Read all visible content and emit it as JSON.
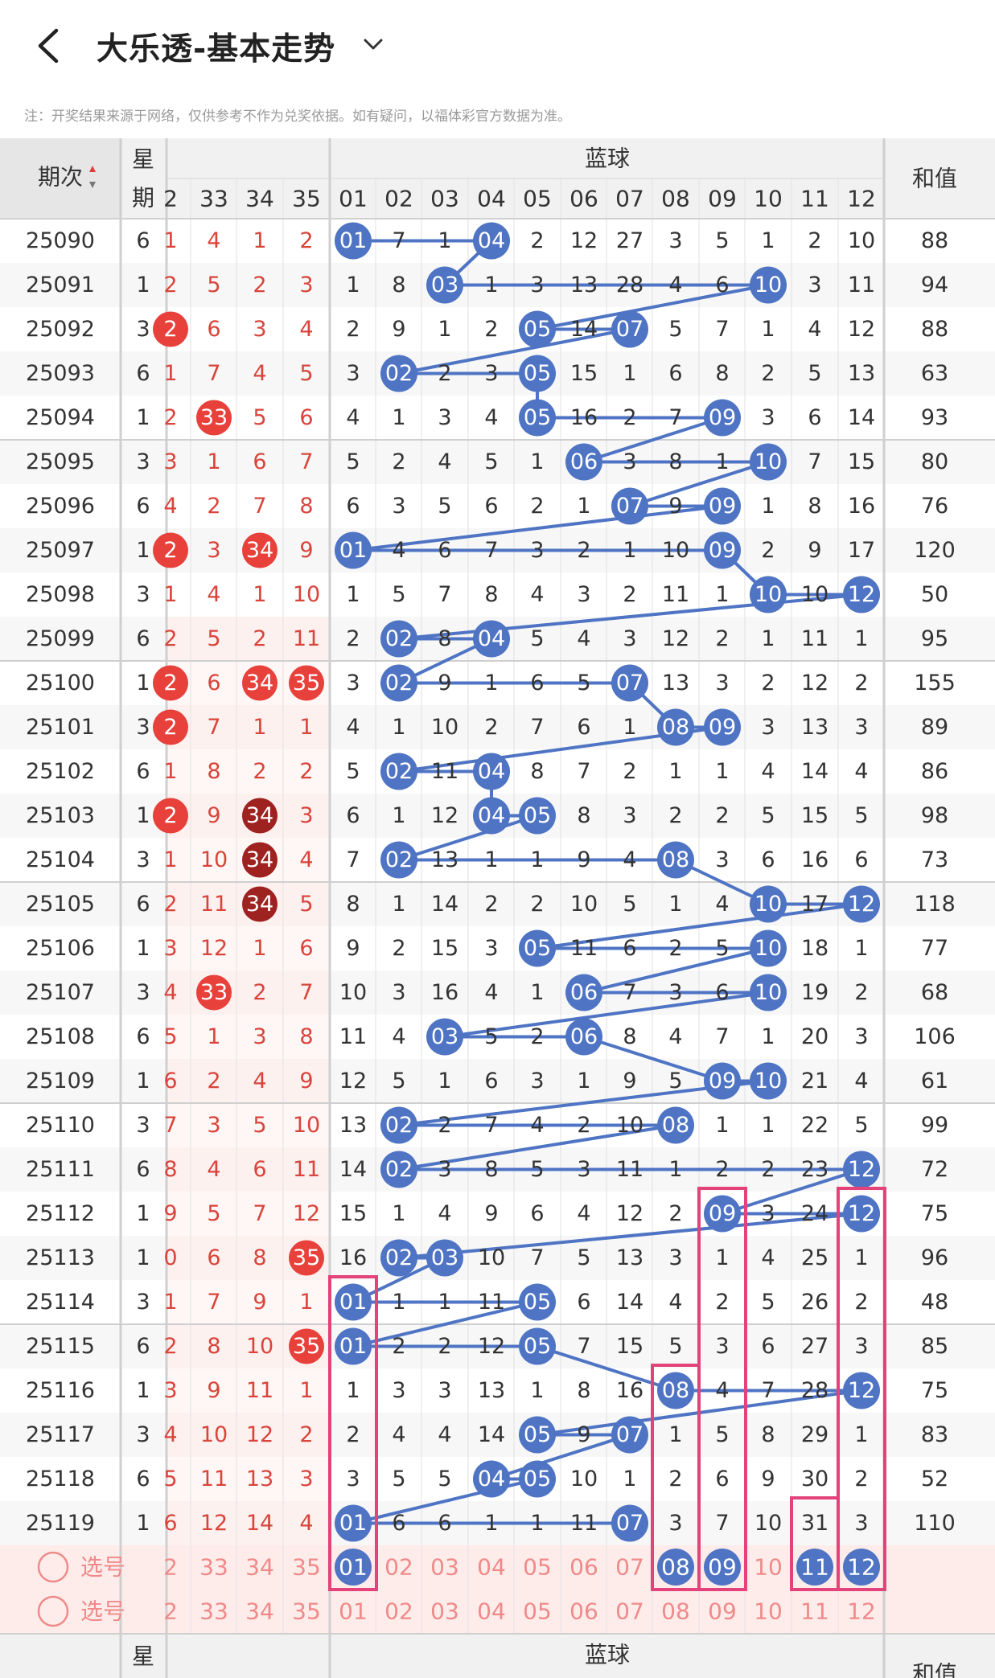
{
  "header": {
    "title": "大乐透-基本走势",
    "note": "注：开奖结果来源于网络，仅供参考不作为兑奖依据。如有疑问，以福体彩官方数据为准。"
  },
  "table": {
    "col_period": "期次",
    "col_weekday_top": "星",
    "col_weekday_bottom": "期",
    "blue_group": "蓝球",
    "col_sum": "和值",
    "front_cols": [
      "2",
      "33",
      "34",
      "35"
    ],
    "blue_cols": [
      "01",
      "02",
      "03",
      "04",
      "05",
      "06",
      "07",
      "08",
      "09",
      "10",
      "11",
      "12"
    ],
    "rows": [
      {
        "period": "25090",
        "wd": "6",
        "front": [
          "1",
          "4",
          "1",
          "2"
        ],
        "front_hit": [],
        "blue": [
          "01",
          "7",
          "1",
          "04",
          "2",
          "12",
          "27",
          "3",
          "5",
          "1",
          "2",
          "10"
        ],
        "hits": [
          1,
          4
        ],
        "sum": "88"
      },
      {
        "period": "25091",
        "wd": "1",
        "front": [
          "2",
          "5",
          "2",
          "3"
        ],
        "front_hit": [],
        "blue": [
          "1",
          "8",
          "03",
          "1",
          "3",
          "13",
          "28",
          "4",
          "6",
          "10",
          "3",
          "11"
        ],
        "hits": [
          3,
          10
        ],
        "sum": "94"
      },
      {
        "period": "25092",
        "wd": "3",
        "front": [
          "2",
          "6",
          "3",
          "4"
        ],
        "front_hit": [
          0
        ],
        "blue": [
          "2",
          "9",
          "1",
          "2",
          "05",
          "14",
          "07",
          "5",
          "7",
          "1",
          "4",
          "12"
        ],
        "hits": [
          5,
          7
        ],
        "sum": "88"
      },
      {
        "period": "25093",
        "wd": "6",
        "front": [
          "1",
          "7",
          "4",
          "5"
        ],
        "front_hit": [],
        "blue": [
          "3",
          "02",
          "2",
          "3",
          "05",
          "15",
          "1",
          "6",
          "8",
          "2",
          "5",
          "13"
        ],
        "hits": [
          2,
          5
        ],
        "sum": "63"
      },
      {
        "period": "25094",
        "wd": "1",
        "front": [
          "2",
          "33",
          "5",
          "6"
        ],
        "front_hit": [
          1
        ],
        "blue": [
          "4",
          "1",
          "3",
          "4",
          "05",
          "16",
          "2",
          "7",
          "09",
          "3",
          "6",
          "14"
        ],
        "hits": [
          5,
          9
        ],
        "sum": "93"
      },
      {
        "period": "25095",
        "wd": "3",
        "front": [
          "3",
          "1",
          "6",
          "7"
        ],
        "front_hit": [],
        "blue": [
          "5",
          "2",
          "4",
          "5",
          "1",
          "06",
          "3",
          "8",
          "1",
          "10",
          "7",
          "15"
        ],
        "hits": [
          6,
          10
        ],
        "sum": "80"
      },
      {
        "period": "25096",
        "wd": "6",
        "front": [
          "4",
          "2",
          "7",
          "8"
        ],
        "front_hit": [],
        "blue": [
          "6",
          "3",
          "5",
          "6",
          "2",
          "1",
          "07",
          "9",
          "09",
          "1",
          "8",
          "16"
        ],
        "hits": [
          7,
          9
        ],
        "sum": "76"
      },
      {
        "period": "25097",
        "wd": "1",
        "front": [
          "2",
          "3",
          "34",
          "9"
        ],
        "front_hit": [
          0,
          2
        ],
        "blue": [
          "01",
          "4",
          "6",
          "7",
          "3",
          "2",
          "1",
          "10",
          "09",
          "2",
          "9",
          "17"
        ],
        "hits": [
          1,
          9
        ],
        "sum": "120"
      },
      {
        "period": "25098",
        "wd": "3",
        "front": [
          "1",
          "4",
          "1",
          "10"
        ],
        "front_hit": [],
        "blue": [
          "1",
          "5",
          "7",
          "8",
          "4",
          "3",
          "2",
          "11",
          "1",
          "10",
          "10",
          "12"
        ],
        "hits": [
          10,
          12
        ],
        "sum": "50"
      },
      {
        "period": "25099",
        "wd": "6",
        "front": [
          "2",
          "5",
          "2",
          "11"
        ],
        "front_hit": [],
        "blue": [
          "2",
          "02",
          "8",
          "04",
          "5",
          "4",
          "3",
          "12",
          "2",
          "1",
          "11",
          "1"
        ],
        "hits": [
          2,
          4
        ],
        "sum": "95"
      },
      {
        "period": "25100",
        "wd": "1",
        "front": [
          "2",
          "6",
          "34",
          "35"
        ],
        "front_hit": [
          0,
          2,
          3
        ],
        "blue": [
          "3",
          "02",
          "9",
          "1",
          "6",
          "5",
          "07",
          "13",
          "3",
          "2",
          "12",
          "2"
        ],
        "hits": [
          2,
          7
        ],
        "sum": "155"
      },
      {
        "period": "25101",
        "wd": "3",
        "front": [
          "2",
          "7",
          "1",
          "1"
        ],
        "front_hit": [
          0
        ],
        "blue": [
          "4",
          "1",
          "10",
          "2",
          "7",
          "6",
          "1",
          "08",
          "09",
          "3",
          "13",
          "3"
        ],
        "hits": [
          8,
          9
        ],
        "sum": "89"
      },
      {
        "period": "25102",
        "wd": "6",
        "front": [
          "1",
          "8",
          "2",
          "2"
        ],
        "front_hit": [],
        "blue": [
          "5",
          "02",
          "11",
          "04",
          "8",
          "7",
          "2",
          "1",
          "1",
          "4",
          "14",
          "4"
        ],
        "hits": [
          2,
          4
        ],
        "sum": "86"
      },
      {
        "period": "25103",
        "wd": "1",
        "front": [
          "2",
          "9",
          "34",
          "3"
        ],
        "front_hit": [
          0,
          2
        ],
        "blue": [
          "6",
          "1",
          "12",
          "04",
          "05",
          "8",
          "3",
          "2",
          "2",
          "5",
          "15",
          "5"
        ],
        "hits": [
          4,
          5
        ],
        "sum": "98"
      },
      {
        "period": "25104",
        "wd": "3",
        "front": [
          "1",
          "10",
          "34",
          "4"
        ],
        "front_hit": [
          2
        ],
        "blue": [
          "7",
          "02",
          "13",
          "1",
          "1",
          "9",
          "4",
          "08",
          "3",
          "6",
          "16",
          "6"
        ],
        "hits": [
          2,
          8
        ],
        "sum": "73"
      },
      {
        "period": "25105",
        "wd": "6",
        "front": [
          "2",
          "11",
          "34",
          "5"
        ],
        "front_hit": [
          2
        ],
        "blue": [
          "8",
          "1",
          "14",
          "2",
          "2",
          "10",
          "5",
          "1",
          "4",
          "10",
          "17",
          "12"
        ],
        "hits": [
          10,
          12
        ],
        "sum": "118"
      },
      {
        "period": "25106",
        "wd": "1",
        "front": [
          "3",
          "12",
          "1",
          "6"
        ],
        "front_hit": [],
        "blue": [
          "9",
          "2",
          "15",
          "3",
          "05",
          "11",
          "6",
          "2",
          "5",
          "10",
          "18",
          "1"
        ],
        "hits": [
          5,
          10
        ],
        "sum": "77"
      },
      {
        "period": "25107",
        "wd": "3",
        "front": [
          "4",
          "33",
          "2",
          "7"
        ],
        "front_hit": [
          1
        ],
        "blue": [
          "10",
          "3",
          "16",
          "4",
          "1",
          "06",
          "7",
          "3",
          "6",
          "10",
          "19",
          "2"
        ],
        "hits": [
          6,
          10
        ],
        "sum": "68"
      },
      {
        "period": "25108",
        "wd": "6",
        "front": [
          "5",
          "1",
          "3",
          "8"
        ],
        "front_hit": [],
        "blue": [
          "11",
          "4",
          "03",
          "5",
          "2",
          "06",
          "8",
          "4",
          "7",
          "1",
          "20",
          "3"
        ],
        "hits": [
          3,
          6
        ],
        "sum": "106"
      },
      {
        "period": "25109",
        "wd": "1",
        "front": [
          "6",
          "2",
          "4",
          "9"
        ],
        "front_hit": [],
        "blue": [
          "12",
          "5",
          "1",
          "6",
          "3",
          "1",
          "9",
          "5",
          "09",
          "10",
          "21",
          "4"
        ],
        "hits": [
          9,
          10
        ],
        "sum": "61"
      },
      {
        "period": "25110",
        "wd": "3",
        "front": [
          "7",
          "3",
          "5",
          "10"
        ],
        "front_hit": [],
        "blue": [
          "13",
          "02",
          "2",
          "7",
          "4",
          "2",
          "10",
          "08",
          "1",
          "1",
          "22",
          "5"
        ],
        "hits": [
          2,
          8
        ],
        "sum": "99"
      },
      {
        "period": "25111",
        "wd": "6",
        "front": [
          "8",
          "4",
          "6",
          "11"
        ],
        "front_hit": [],
        "blue": [
          "14",
          "02",
          "3",
          "8",
          "5",
          "3",
          "11",
          "1",
          "2",
          "2",
          "23",
          "12"
        ],
        "hits": [
          2,
          12
        ],
        "sum": "72"
      },
      {
        "period": "25112",
        "wd": "1",
        "front": [
          "9",
          "5",
          "7",
          "12"
        ],
        "front_hit": [],
        "blue": [
          "15",
          "1",
          "4",
          "9",
          "6",
          "4",
          "12",
          "2",
          "09",
          "3",
          "24",
          "12"
        ],
        "hits": [
          9,
          12
        ],
        "sum": "75"
      },
      {
        "period": "25113",
        "wd": "1",
        "front": [
          "0",
          "6",
          "8",
          "35"
        ],
        "front_hit": [
          3
        ],
        "blue": [
          "16",
          "02",
          "03",
          "10",
          "7",
          "5",
          "13",
          "3",
          "1",
          "4",
          "25",
          "1"
        ],
        "hits": [
          2,
          3
        ],
        "sum": "96"
      },
      {
        "period": "25114",
        "wd": "3",
        "front": [
          "1",
          "7",
          "9",
          "1"
        ],
        "front_hit": [],
        "blue": [
          "01",
          "1",
          "1",
          "11",
          "05",
          "6",
          "14",
          "4",
          "2",
          "5",
          "26",
          "2"
        ],
        "hits": [
          1,
          5
        ],
        "sum": "48"
      },
      {
        "period": "25115",
        "wd": "6",
        "front": [
          "2",
          "8",
          "10",
          "35"
        ],
        "front_hit": [
          3
        ],
        "blue": [
          "01",
          "2",
          "2",
          "12",
          "05",
          "7",
          "15",
          "5",
          "3",
          "6",
          "27",
          "3"
        ],
        "hits": [
          1,
          5
        ],
        "sum": "85"
      },
      {
        "period": "25116",
        "wd": "1",
        "front": [
          "3",
          "9",
          "11",
          "1"
        ],
        "front_hit": [],
        "blue": [
          "1",
          "3",
          "3",
          "13",
          "1",
          "8",
          "16",
          "08",
          "4",
          "7",
          "28",
          "12"
        ],
        "hits": [
          8,
          12
        ],
        "sum": "75"
      },
      {
        "period": "25117",
        "wd": "3",
        "front": [
          "4",
          "10",
          "12",
          "2"
        ],
        "front_hit": [],
        "blue": [
          "2",
          "4",
          "4",
          "14",
          "05",
          "9",
          "07",
          "1",
          "5",
          "8",
          "29",
          "1"
        ],
        "hits": [
          5,
          7
        ],
        "sum": "83"
      },
      {
        "period": "25118",
        "wd": "6",
        "front": [
          "5",
          "11",
          "13",
          "3"
        ],
        "front_hit": [],
        "blue": [
          "3",
          "5",
          "5",
          "04",
          "05",
          "10",
          "1",
          "2",
          "6",
          "9",
          "30",
          "2"
        ],
        "hits": [
          4,
          5
        ],
        "sum": "52"
      },
      {
        "period": "25119",
        "wd": "1",
        "front": [
          "6",
          "12",
          "14",
          "4"
        ],
        "front_hit": [],
        "blue": [
          "01",
          "6",
          "6",
          "1",
          "1",
          "11",
          "07",
          "3",
          "7",
          "10",
          "31",
          "3"
        ],
        "hits": [
          1,
          7
        ],
        "sum": "110"
      }
    ],
    "select_label": "选号",
    "select_blue_marked": [
      1,
      8,
      9,
      11,
      12
    ],
    "select_blue_marked_text": [
      "01",
      "08",
      "09",
      "11",
      "12"
    ]
  },
  "colors": {
    "blue_ball": "#4f74c4",
    "red_ball": "#e8413b",
    "dark_red_ball": "#9e2220",
    "highlight_box": "#e4427a",
    "select_bg": "#fdecea"
  }
}
